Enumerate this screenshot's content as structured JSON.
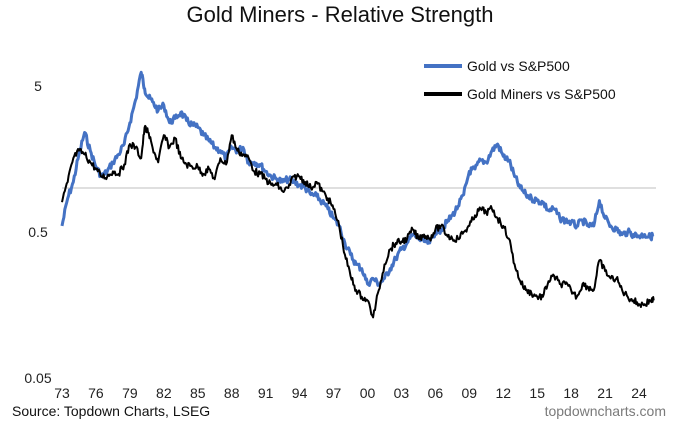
{
  "title": "Gold Miners - Relative Strength",
  "source": "Source: Topdown Charts, LSEG",
  "watermark": "topdowncharts.com",
  "colors": {
    "gold": "#4472C4",
    "miners": "#000000",
    "axis": "#bfbfbf"
  },
  "chart_data": {
    "type": "line",
    "title": "Gold Miners - Relative Strength",
    "xlabel": "",
    "ylabel": "",
    "y_scale": "log",
    "ylim": [
      0.05,
      10
    ],
    "xlim": [
      1973,
      2025.5
    ],
    "y_ticks": [
      {
        "value": 5,
        "label": "5"
      },
      {
        "value": 0.5,
        "label": "0.5"
      },
      {
        "value": 0.05,
        "label": "0.05"
      }
    ],
    "x_ticks": [
      {
        "value": 1973,
        "label": "73"
      },
      {
        "value": 1976,
        "label": "76"
      },
      {
        "value": 1979,
        "label": "79"
      },
      {
        "value": 1982,
        "label": "82"
      },
      {
        "value": 1985,
        "label": "85"
      },
      {
        "value": 1988,
        "label": "88"
      },
      {
        "value": 1991,
        "label": "91"
      },
      {
        "value": 1994,
        "label": "94"
      },
      {
        "value": 1997,
        "label": "97"
      },
      {
        "value": 2000,
        "label": "00"
      },
      {
        "value": 2003,
        "label": "03"
      },
      {
        "value": 2006,
        "label": "06"
      },
      {
        "value": 2009,
        "label": "09"
      },
      {
        "value": 2012,
        "label": "12"
      },
      {
        "value": 2015,
        "label": "15"
      },
      {
        "value": 2018,
        "label": "18"
      },
      {
        "value": 2021,
        "label": "21"
      },
      {
        "value": 2024,
        "label": "24"
      }
    ],
    "legend": "top-right",
    "series": [
      {
        "name": "Gold vs S&P500",
        "color": "#4472C4",
        "x": [
          1973.0,
          1973.5,
          1974.0,
          1974.5,
          1975.0,
          1975.5,
          1976.0,
          1976.5,
          1977.0,
          1977.5,
          1978.0,
          1978.5,
          1979.0,
          1979.5,
          1980.0,
          1980.3,
          1980.6,
          1981.0,
          1981.5,
          1982.0,
          1982.5,
          1983.0,
          1983.5,
          1984.0,
          1984.5,
          1985.0,
          1985.5,
          1986.0,
          1986.5,
          1987.0,
          1987.5,
          1988.0,
          1988.5,
          1989.0,
          1989.5,
          1990.0,
          1990.5,
          1991.0,
          1991.5,
          1992.0,
          1992.5,
          1993.0,
          1993.5,
          1994.0,
          1994.5,
          1995.0,
          1995.5,
          1996.0,
          1996.5,
          1997.0,
          1997.5,
          1998.0,
          1998.5,
          1999.0,
          1999.5,
          2000.0,
          2000.5,
          2001.0,
          2001.5,
          2002.0,
          2002.5,
          2003.0,
          2003.5,
          2004.0,
          2004.5,
          2005.0,
          2005.5,
          2006.0,
          2006.5,
          2007.0,
          2007.5,
          2008.0,
          2008.5,
          2009.0,
          2009.5,
          2010.0,
          2010.5,
          2011.0,
          2011.5,
          2012.0,
          2012.5,
          2013.0,
          2013.5,
          2014.0,
          2014.5,
          2015.0,
          2015.5,
          2016.0,
          2016.5,
          2017.0,
          2017.5,
          2018.0,
          2018.5,
          2019.0,
          2019.5,
          2020.0,
          2020.5,
          2021.0,
          2021.5,
          2022.0,
          2022.5,
          2023.0,
          2023.5,
          2024.0,
          2024.5,
          2025.0,
          2025.3
        ],
        "y": [
          0.55,
          0.85,
          1.1,
          1.7,
          2.4,
          1.8,
          1.4,
          1.2,
          1.3,
          1.5,
          1.7,
          2.0,
          2.8,
          4.0,
          6.2,
          4.8,
          4.2,
          3.9,
          3.4,
          3.7,
          2.8,
          3.0,
          3.3,
          2.9,
          2.7,
          2.6,
          2.3,
          2.1,
          1.9,
          1.8,
          1.6,
          1.9,
          1.8,
          1.9,
          1.5,
          1.5,
          1.45,
          1.3,
          1.2,
          1.15,
          1.1,
          1.15,
          1.1,
          1.05,
          1.0,
          0.9,
          0.88,
          0.8,
          0.72,
          0.62,
          0.55,
          0.42,
          0.35,
          0.3,
          0.28,
          0.22,
          0.24,
          0.22,
          0.24,
          0.28,
          0.33,
          0.38,
          0.42,
          0.48,
          0.45,
          0.43,
          0.42,
          0.5,
          0.52,
          0.58,
          0.65,
          0.75,
          0.9,
          1.3,
          1.35,
          1.55,
          1.5,
          1.8,
          2.0,
          1.65,
          1.55,
          1.2,
          1.0,
          0.9,
          0.85,
          0.82,
          0.8,
          0.7,
          0.72,
          0.62,
          0.6,
          0.58,
          0.55,
          0.6,
          0.55,
          0.55,
          0.82,
          0.62,
          0.55,
          0.52,
          0.48,
          0.5,
          0.48,
          0.47,
          0.48,
          0.46,
          0.48
        ]
      },
      {
        "name": "Gold Miners vs S&P500",
        "color": "#000000",
        "x": [
          1973.0,
          1973.5,
          1974.0,
          1974.5,
          1975.0,
          1975.5,
          1976.0,
          1976.5,
          1977.0,
          1977.5,
          1978.0,
          1978.5,
          1979.0,
          1979.5,
          1980.0,
          1980.3,
          1980.6,
          1981.0,
          1981.5,
          1982.0,
          1982.5,
          1983.0,
          1983.5,
          1984.0,
          1984.5,
          1985.0,
          1985.5,
          1986.0,
          1986.5,
          1987.0,
          1987.5,
          1988.0,
          1988.5,
          1989.0,
          1989.5,
          1990.0,
          1990.5,
          1991.0,
          1991.5,
          1992.0,
          1992.5,
          1993.0,
          1993.5,
          1994.0,
          1994.5,
          1995.0,
          1995.5,
          1996.0,
          1996.5,
          1997.0,
          1997.5,
          1998.0,
          1998.5,
          1999.0,
          1999.5,
          2000.0,
          2000.5,
          2001.0,
          2001.5,
          2002.0,
          2002.5,
          2003.0,
          2003.5,
          2004.0,
          2004.5,
          2005.0,
          2005.5,
          2006.0,
          2006.5,
          2007.0,
          2007.5,
          2008.0,
          2008.5,
          2009.0,
          2009.5,
          2010.0,
          2010.5,
          2011.0,
          2011.5,
          2012.0,
          2012.5,
          2013.0,
          2013.5,
          2014.0,
          2014.5,
          2015.0,
          2015.5,
          2016.0,
          2016.5,
          2017.0,
          2017.5,
          2018.0,
          2018.5,
          2019.0,
          2019.5,
          2020.0,
          2020.5,
          2021.0,
          2021.5,
          2022.0,
          2022.5,
          2023.0,
          2023.5,
          2024.0,
          2024.5,
          2025.0,
          2025.3
        ],
        "y": [
          0.8,
          1.1,
          1.6,
          1.8,
          1.7,
          1.5,
          1.35,
          1.2,
          1.2,
          1.3,
          1.25,
          1.45,
          2.0,
          1.9,
          1.6,
          2.6,
          2.4,
          1.9,
          1.5,
          2.3,
          1.9,
          2.2,
          1.6,
          1.45,
          1.4,
          1.4,
          1.25,
          1.35,
          1.15,
          1.6,
          1.45,
          2.3,
          1.8,
          1.7,
          1.6,
          1.3,
          1.25,
          1.15,
          1.05,
          1.05,
          0.95,
          1.0,
          1.2,
          1.2,
          1.1,
          1.0,
          1.1,
          0.95,
          0.85,
          0.72,
          0.55,
          0.35,
          0.25,
          0.2,
          0.18,
          0.17,
          0.13,
          0.2,
          0.3,
          0.38,
          0.42,
          0.43,
          0.45,
          0.52,
          0.45,
          0.48,
          0.45,
          0.52,
          0.55,
          0.48,
          0.45,
          0.45,
          0.5,
          0.55,
          0.65,
          0.72,
          0.68,
          0.72,
          0.62,
          0.55,
          0.45,
          0.3,
          0.23,
          0.2,
          0.19,
          0.18,
          0.18,
          0.23,
          0.25,
          0.22,
          0.22,
          0.2,
          0.18,
          0.22,
          0.21,
          0.2,
          0.32,
          0.27,
          0.24,
          0.24,
          0.2,
          0.18,
          0.17,
          0.16,
          0.16,
          0.17,
          0.17
        ]
      }
    ]
  }
}
